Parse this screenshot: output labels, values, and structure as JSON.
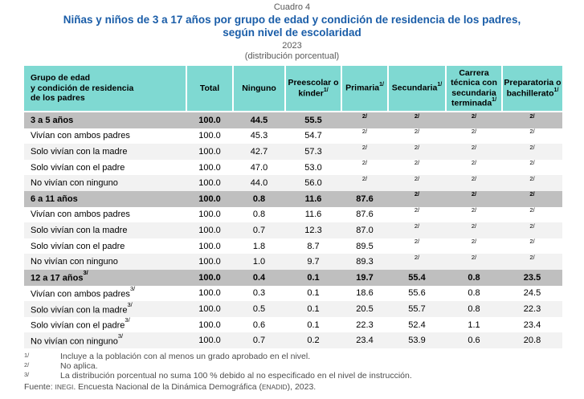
{
  "header": {
    "cuadro": "Cuadro 4",
    "title_line1": "Niñas y niños de 3 a 17 años por grupo de edad y condición de residencia de los padres,",
    "title_line2": "según nivel de escolaridad",
    "year": "2023",
    "subtitle": "(distribución porcentual)"
  },
  "colors": {
    "header_bg": "#7FD9D2",
    "group_row_bg": "#BFBFBF",
    "stripe_bg": "#F2F2F2",
    "title_blue": "#1A5DA8",
    "muted_text": "#595959"
  },
  "table": {
    "columns": [
      {
        "label": "Grupo de edad\ny condición de residencia\nde los padres",
        "sup": ""
      },
      {
        "label": "Total",
        "sup": ""
      },
      {
        "label": "Ninguno",
        "sup": ""
      },
      {
        "label": "Preescolar o kínder",
        "sup": "1/"
      },
      {
        "label": "Primaria",
        "sup": "1/"
      },
      {
        "label": "Secundaria",
        "sup": "1/"
      },
      {
        "label": "Carrera técnica con secundaria terminada",
        "sup": "1/"
      },
      {
        "label": "Preparatoria o bachillerato",
        "sup": "1/"
      }
    ],
    "rows": [
      {
        "type": "group",
        "label": "3 a 5 años",
        "sup": "",
        "values": [
          "100.0",
          "44.5",
          "55.5",
          "2/",
          "2/",
          "2/",
          "2/"
        ]
      },
      {
        "type": "data",
        "label": "Vivían con ambos padres",
        "sup": "",
        "values": [
          "100.0",
          "45.3",
          "54.7",
          "2/",
          "2/",
          "2/",
          "2/"
        ]
      },
      {
        "type": "data",
        "label": "Solo vivían con la madre",
        "sup": "",
        "values": [
          "100.0",
          "42.7",
          "57.3",
          "2/",
          "2/",
          "2/",
          "2/"
        ]
      },
      {
        "type": "data",
        "label": "Solo vivían con el padre",
        "sup": "",
        "values": [
          "100.0",
          "47.0",
          "53.0",
          "2/",
          "2/",
          "2/",
          "2/"
        ]
      },
      {
        "type": "data",
        "label": "No vivían con ninguno",
        "sup": "",
        "values": [
          "100.0",
          "44.0",
          "56.0",
          "2/",
          "2/",
          "2/",
          "2/"
        ]
      },
      {
        "type": "group",
        "label": "6 a 11 años",
        "sup": "",
        "values": [
          "100.0",
          "0.8",
          "11.6",
          "87.6",
          "2/",
          "2/",
          "2/"
        ]
      },
      {
        "type": "data",
        "label": "Vivían con ambos padres",
        "sup": "",
        "values": [
          "100.0",
          "0.8",
          "11.6",
          "87.6",
          "2/",
          "2/",
          "2/"
        ]
      },
      {
        "type": "data",
        "label": "Solo vivían con la madre",
        "sup": "",
        "values": [
          "100.0",
          "0.7",
          "12.3",
          "87.0",
          "2/",
          "2/",
          "2/"
        ]
      },
      {
        "type": "data",
        "label": "Solo vivían con el padre",
        "sup": "",
        "values": [
          "100.0",
          "1.8",
          "8.7",
          "89.5",
          "2/",
          "2/",
          "2/"
        ]
      },
      {
        "type": "data",
        "label": "No vivían con ninguno",
        "sup": "",
        "values": [
          "100.0",
          "1.0",
          "9.7",
          "89.3",
          "2/",
          "2/",
          "2/"
        ]
      },
      {
        "type": "group",
        "label": "12 a 17 años",
        "sup": "3/",
        "values": [
          "100.0",
          "0.4",
          "0.1",
          "19.7",
          "55.4",
          "0.8",
          "23.5"
        ]
      },
      {
        "type": "data",
        "label": "Vivían con ambos padres",
        "sup": "3/",
        "values": [
          "100.0",
          "0.3",
          "0.1",
          "18.6",
          "55.6",
          "0.8",
          "24.5"
        ]
      },
      {
        "type": "data",
        "label": "Solo vivían con la madre",
        "sup": "3/",
        "values": [
          "100.0",
          "0.5",
          "0.1",
          "20.5",
          "55.7",
          "0.8",
          "22.3"
        ]
      },
      {
        "type": "data",
        "label": "Solo vivían con el padre",
        "sup": "3/",
        "values": [
          "100.0",
          "0.6",
          "0.1",
          "22.3",
          "52.4",
          "1.1",
          "23.4"
        ]
      },
      {
        "type": "data",
        "label": "No vivían con ninguno",
        "sup": "3/",
        "values": [
          "100.0",
          "0.7",
          "0.2",
          "23.4",
          "53.9",
          "0.6",
          "20.8"
        ]
      }
    ]
  },
  "footnotes": [
    {
      "marker": "1/",
      "text": "Incluye a la población con al menos un grado aprobado en el nivel."
    },
    {
      "marker": "2/",
      "text": "No aplica."
    },
    {
      "marker": "3/",
      "text": "La distribución porcentual no suma 100 % debido al no especificado en el nivel de instrucción."
    }
  ],
  "fuente": {
    "prefix": "Fuente: ",
    "inegi": "INEGI",
    "mid": ". Encuesta Nacional de la Dinámica Demográfica (",
    "enadid": "ENADID",
    "tail": "), 2023."
  }
}
